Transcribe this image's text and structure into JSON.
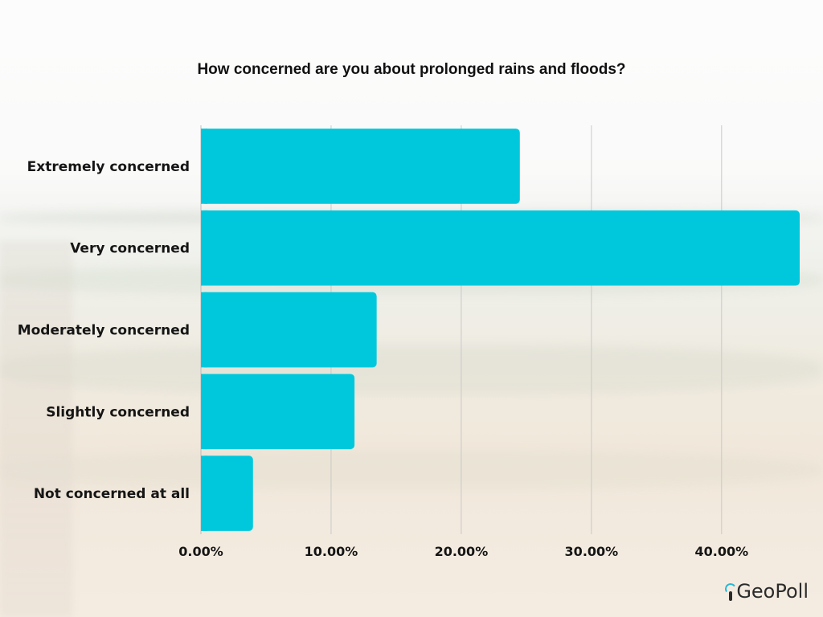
{
  "chart_data": {
    "type": "bar",
    "orientation": "horizontal",
    "title": "How concerned are you about prolonged rains and floods?",
    "categories": [
      "Extremely concerned",
      "Very concerned",
      "Moderately concerned",
      "Slightly concerned",
      "Not concerned at all"
    ],
    "values": [
      24.5,
      46.0,
      13.5,
      11.8,
      4.0
    ],
    "xlim": [
      0,
      46
    ],
    "xticks": [
      0,
      10,
      20,
      30,
      40
    ],
    "xtick_labels": [
      "0.00%",
      "10.00%",
      "20.00%",
      "30.00%",
      "40.00%"
    ],
    "grid": true,
    "bar_color": "#00c8dc"
  },
  "branding": {
    "logo_text": "GeoPoll",
    "logo_accent_color": "#25b8d6"
  }
}
